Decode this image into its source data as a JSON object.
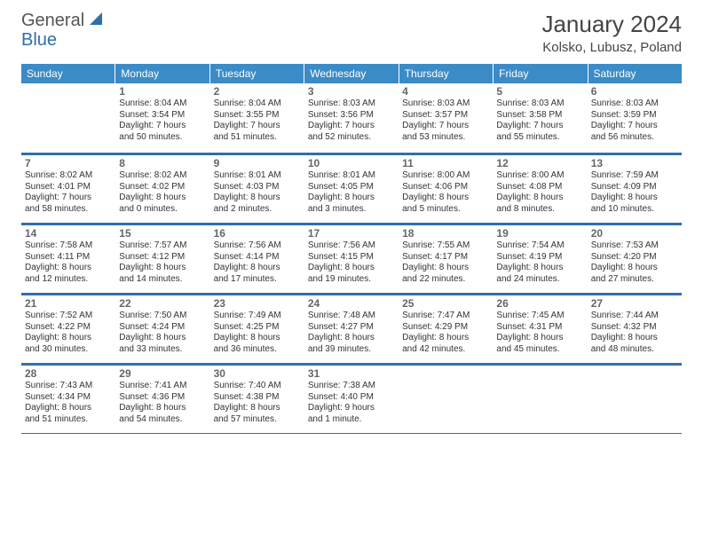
{
  "logo": {
    "text1": "General",
    "text2": "Blue"
  },
  "title": "January 2024",
  "location": "Kolsko, Lubusz, Poland",
  "dow": [
    "Sunday",
    "Monday",
    "Tuesday",
    "Wednesday",
    "Thursday",
    "Friday",
    "Saturday"
  ],
  "colors": {
    "header_bg": "#3b8bc7",
    "header_text": "#ffffff",
    "border": "#2f6fae",
    "logo_blue": "#2f6fae",
    "logo_gray": "#555555"
  },
  "weeks": [
    [
      {
        "n": "",
        "sr": "",
        "ss": "",
        "dl1": "",
        "dl2": ""
      },
      {
        "n": "1",
        "sr": "Sunrise: 8:04 AM",
        "ss": "Sunset: 3:54 PM",
        "dl1": "Daylight: 7 hours",
        "dl2": "and 50 minutes."
      },
      {
        "n": "2",
        "sr": "Sunrise: 8:04 AM",
        "ss": "Sunset: 3:55 PM",
        "dl1": "Daylight: 7 hours",
        "dl2": "and 51 minutes."
      },
      {
        "n": "3",
        "sr": "Sunrise: 8:03 AM",
        "ss": "Sunset: 3:56 PM",
        "dl1": "Daylight: 7 hours",
        "dl2": "and 52 minutes."
      },
      {
        "n": "4",
        "sr": "Sunrise: 8:03 AM",
        "ss": "Sunset: 3:57 PM",
        "dl1": "Daylight: 7 hours",
        "dl2": "and 53 minutes."
      },
      {
        "n": "5",
        "sr": "Sunrise: 8:03 AM",
        "ss": "Sunset: 3:58 PM",
        "dl1": "Daylight: 7 hours",
        "dl2": "and 55 minutes."
      },
      {
        "n": "6",
        "sr": "Sunrise: 8:03 AM",
        "ss": "Sunset: 3:59 PM",
        "dl1": "Daylight: 7 hours",
        "dl2": "and 56 minutes."
      }
    ],
    [
      {
        "n": "7",
        "sr": "Sunrise: 8:02 AM",
        "ss": "Sunset: 4:01 PM",
        "dl1": "Daylight: 7 hours",
        "dl2": "and 58 minutes."
      },
      {
        "n": "8",
        "sr": "Sunrise: 8:02 AM",
        "ss": "Sunset: 4:02 PM",
        "dl1": "Daylight: 8 hours",
        "dl2": "and 0 minutes."
      },
      {
        "n": "9",
        "sr": "Sunrise: 8:01 AM",
        "ss": "Sunset: 4:03 PM",
        "dl1": "Daylight: 8 hours",
        "dl2": "and 2 minutes."
      },
      {
        "n": "10",
        "sr": "Sunrise: 8:01 AM",
        "ss": "Sunset: 4:05 PM",
        "dl1": "Daylight: 8 hours",
        "dl2": "and 3 minutes."
      },
      {
        "n": "11",
        "sr": "Sunrise: 8:00 AM",
        "ss": "Sunset: 4:06 PM",
        "dl1": "Daylight: 8 hours",
        "dl2": "and 5 minutes."
      },
      {
        "n": "12",
        "sr": "Sunrise: 8:00 AM",
        "ss": "Sunset: 4:08 PM",
        "dl1": "Daylight: 8 hours",
        "dl2": "and 8 minutes."
      },
      {
        "n": "13",
        "sr": "Sunrise: 7:59 AM",
        "ss": "Sunset: 4:09 PM",
        "dl1": "Daylight: 8 hours",
        "dl2": "and 10 minutes."
      }
    ],
    [
      {
        "n": "14",
        "sr": "Sunrise: 7:58 AM",
        "ss": "Sunset: 4:11 PM",
        "dl1": "Daylight: 8 hours",
        "dl2": "and 12 minutes."
      },
      {
        "n": "15",
        "sr": "Sunrise: 7:57 AM",
        "ss": "Sunset: 4:12 PM",
        "dl1": "Daylight: 8 hours",
        "dl2": "and 14 minutes."
      },
      {
        "n": "16",
        "sr": "Sunrise: 7:56 AM",
        "ss": "Sunset: 4:14 PM",
        "dl1": "Daylight: 8 hours",
        "dl2": "and 17 minutes."
      },
      {
        "n": "17",
        "sr": "Sunrise: 7:56 AM",
        "ss": "Sunset: 4:15 PM",
        "dl1": "Daylight: 8 hours",
        "dl2": "and 19 minutes."
      },
      {
        "n": "18",
        "sr": "Sunrise: 7:55 AM",
        "ss": "Sunset: 4:17 PM",
        "dl1": "Daylight: 8 hours",
        "dl2": "and 22 minutes."
      },
      {
        "n": "19",
        "sr": "Sunrise: 7:54 AM",
        "ss": "Sunset: 4:19 PM",
        "dl1": "Daylight: 8 hours",
        "dl2": "and 24 minutes."
      },
      {
        "n": "20",
        "sr": "Sunrise: 7:53 AM",
        "ss": "Sunset: 4:20 PM",
        "dl1": "Daylight: 8 hours",
        "dl2": "and 27 minutes."
      }
    ],
    [
      {
        "n": "21",
        "sr": "Sunrise: 7:52 AM",
        "ss": "Sunset: 4:22 PM",
        "dl1": "Daylight: 8 hours",
        "dl2": "and 30 minutes."
      },
      {
        "n": "22",
        "sr": "Sunrise: 7:50 AM",
        "ss": "Sunset: 4:24 PM",
        "dl1": "Daylight: 8 hours",
        "dl2": "and 33 minutes."
      },
      {
        "n": "23",
        "sr": "Sunrise: 7:49 AM",
        "ss": "Sunset: 4:25 PM",
        "dl1": "Daylight: 8 hours",
        "dl2": "and 36 minutes."
      },
      {
        "n": "24",
        "sr": "Sunrise: 7:48 AM",
        "ss": "Sunset: 4:27 PM",
        "dl1": "Daylight: 8 hours",
        "dl2": "and 39 minutes."
      },
      {
        "n": "25",
        "sr": "Sunrise: 7:47 AM",
        "ss": "Sunset: 4:29 PM",
        "dl1": "Daylight: 8 hours",
        "dl2": "and 42 minutes."
      },
      {
        "n": "26",
        "sr": "Sunrise: 7:45 AM",
        "ss": "Sunset: 4:31 PM",
        "dl1": "Daylight: 8 hours",
        "dl2": "and 45 minutes."
      },
      {
        "n": "27",
        "sr": "Sunrise: 7:44 AM",
        "ss": "Sunset: 4:32 PM",
        "dl1": "Daylight: 8 hours",
        "dl2": "and 48 minutes."
      }
    ],
    [
      {
        "n": "28",
        "sr": "Sunrise: 7:43 AM",
        "ss": "Sunset: 4:34 PM",
        "dl1": "Daylight: 8 hours",
        "dl2": "and 51 minutes."
      },
      {
        "n": "29",
        "sr": "Sunrise: 7:41 AM",
        "ss": "Sunset: 4:36 PM",
        "dl1": "Daylight: 8 hours",
        "dl2": "and 54 minutes."
      },
      {
        "n": "30",
        "sr": "Sunrise: 7:40 AM",
        "ss": "Sunset: 4:38 PM",
        "dl1": "Daylight: 8 hours",
        "dl2": "and 57 minutes."
      },
      {
        "n": "31",
        "sr": "Sunrise: 7:38 AM",
        "ss": "Sunset: 4:40 PM",
        "dl1": "Daylight: 9 hours",
        "dl2": "and 1 minute."
      },
      {
        "n": "",
        "sr": "",
        "ss": "",
        "dl1": "",
        "dl2": ""
      },
      {
        "n": "",
        "sr": "",
        "ss": "",
        "dl1": "",
        "dl2": ""
      },
      {
        "n": "",
        "sr": "",
        "ss": "",
        "dl1": "",
        "dl2": ""
      }
    ]
  ]
}
